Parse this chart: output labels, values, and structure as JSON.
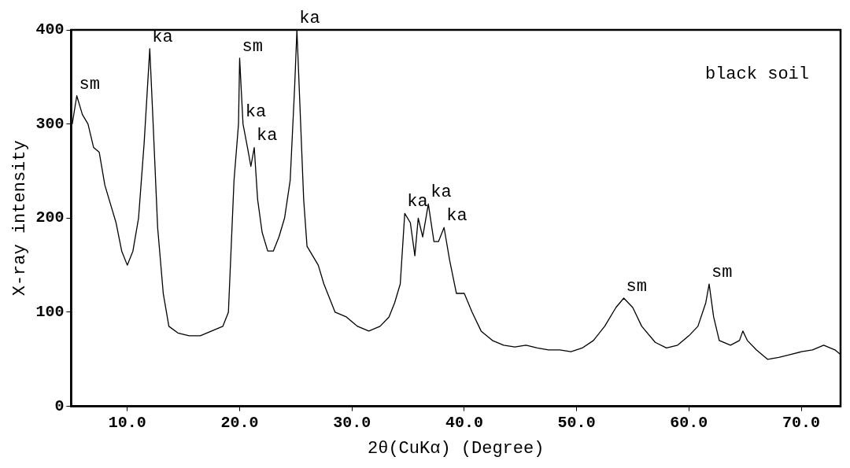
{
  "chart_data": {
    "type": "line",
    "xlabel": "2θ(CuKα) (Degree)",
    "ylabel": "X-ray intensity",
    "xlim": [
      5,
      73.5
    ],
    "ylim": [
      0,
      400
    ],
    "xticks": [
      {
        "value": 10,
        "label": "10.0"
      },
      {
        "value": 20,
        "label": "20.0"
      },
      {
        "value": 30,
        "label": "30.0"
      },
      {
        "value": 40,
        "label": "40.0"
      },
      {
        "value": 50,
        "label": "50.0"
      },
      {
        "value": 60,
        "label": "60.0"
      },
      {
        "value": 70,
        "label": "70.0"
      }
    ],
    "yticks": [
      0,
      100,
      200,
      300,
      400
    ],
    "grid": false,
    "legend": false,
    "marker": "none",
    "line_style": "solid",
    "series": [
      {
        "color": "#000000",
        "x": [
          5.1,
          5.5,
          6.0,
          6.5,
          7.0,
          7.5,
          8.0,
          8.5,
          9.0,
          9.5,
          10.0,
          10.5,
          11.0,
          11.5,
          11.9,
          12.0,
          12.3,
          12.7,
          13.2,
          13.7,
          14.5,
          15.5,
          16.5,
          17.5,
          18.5,
          19.0,
          19.5,
          19.9,
          20.0,
          20.3,
          20.7,
          21.0,
          21.3,
          21.6,
          22.0,
          22.5,
          23.0,
          23.5,
          24.0,
          24.5,
          24.9,
          25.1,
          25.4,
          25.7,
          26.0,
          27.0,
          27.5,
          28.5,
          29.5,
          30.5,
          31.5,
          32.5,
          33.3,
          33.8,
          34.3,
          34.7,
          35.2,
          35.6,
          35.9,
          36.3,
          36.8,
          37.3,
          37.7,
          38.2,
          38.7,
          39.3,
          40.0,
          40.7,
          41.5,
          42.5,
          43.5,
          44.5,
          45.5,
          46.5,
          47.5,
          48.5,
          49.5,
          50.5,
          51.5,
          52.5,
          53.5,
          54.2,
          55.0,
          55.8,
          57.0,
          58.0,
          59.0,
          60.0,
          60.8,
          61.5,
          61.8,
          62.2,
          62.7,
          63.7,
          64.5,
          64.8,
          65.2,
          66.0,
          67.0,
          68.0,
          69.0,
          70.0,
          71.0,
          72.0,
          73.0,
          73.5
        ],
        "values": [
          300,
          330,
          310,
          300,
          275,
          270,
          235,
          215,
          195,
          165,
          150,
          165,
          200,
          280,
          360,
          380,
          300,
          190,
          120,
          85,
          78,
          75,
          75,
          80,
          85,
          100,
          240,
          300,
          370,
          300,
          275,
          255,
          275,
          220,
          185,
          165,
          165,
          180,
          200,
          240,
          340,
          400,
          310,
          220,
          170,
          150,
          130,
          100,
          95,
          85,
          80,
          85,
          95,
          110,
          130,
          205,
          195,
          160,
          200,
          180,
          215,
          175,
          175,
          190,
          155,
          120,
          120,
          100,
          80,
          70,
          65,
          63,
          65,
          62,
          60,
          60,
          58,
          62,
          70,
          85,
          105,
          115,
          105,
          85,
          68,
          62,
          65,
          75,
          85,
          110,
          130,
          95,
          70,
          65,
          70,
          80,
          70,
          60,
          50,
          52,
          55,
          58,
          60,
          65,
          60,
          55
        ]
      }
    ],
    "annotations": [
      {
        "text": "sm",
        "x": 5.5,
        "y": 330
      },
      {
        "text": "ka",
        "x": 12.0,
        "y": 380
      },
      {
        "text": "sm",
        "x": 20.0,
        "y": 370
      },
      {
        "text": "ka",
        "x": 20.3,
        "y": 300
      },
      {
        "text": "ka",
        "x": 21.3,
        "y": 275
      },
      {
        "text": "ka",
        "x": 25.1,
        "y": 400
      },
      {
        "text": "ka",
        "x": 34.7,
        "y": 205
      },
      {
        "text": "ka",
        "x": 36.8,
        "y": 215
      },
      {
        "text": "ka",
        "x": 38.2,
        "y": 190
      },
      {
        "text": "sm",
        "x": 54.2,
        "y": 115
      },
      {
        "text": "sm",
        "x": 61.8,
        "y": 130
      },
      "black soil"
    ]
  }
}
